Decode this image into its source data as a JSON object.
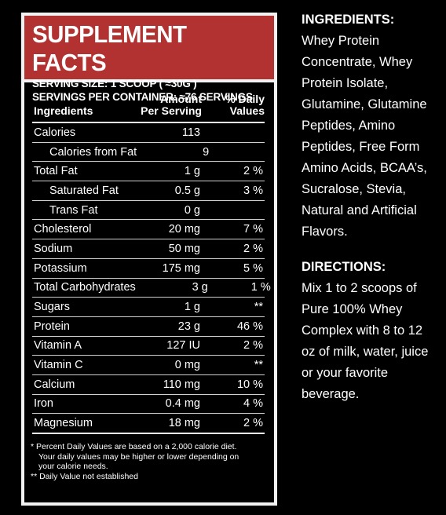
{
  "panel": {
    "title": "SUPPLEMENT FACTS",
    "serving_size": "SERVING SIZE: 1 SCOOP ( ≈30G )",
    "servings_per_container": "SERVINGS PER CONTAINER: ≈76 SERVINGS",
    "columns": {
      "ingredients": "Ingredients",
      "amount_line1": "Amount",
      "amount_line2": "Per Serving",
      "daily_line1": "% Daily",
      "daily_line2": "Values"
    },
    "rows": [
      {
        "name": "Calories",
        "amount": "113",
        "dv": ""
      },
      {
        "name": "Calories from Fat",
        "amount": "9",
        "dv": ""
      },
      {
        "name": "Total Fat",
        "amount": "1 g",
        "dv": "2 %"
      },
      {
        "name": "Saturated Fat",
        "amount": "0.5 g",
        "dv": "3 %"
      },
      {
        "name": "Trans Fat",
        "amount": "0 g",
        "dv": ""
      },
      {
        "name": "Cholesterol",
        "amount": "20 mg",
        "dv": "7 %"
      },
      {
        "name": "Sodium",
        "amount": "50 mg",
        "dv": "2 %"
      },
      {
        "name": "Potassium",
        "amount": "175 mg",
        "dv": "5 %"
      },
      {
        "name": "Total Carbohydrates",
        "amount": "3 g",
        "dv": "1 %"
      },
      {
        "name": "Sugars",
        "amount": "1 g",
        "dv": "**"
      },
      {
        "name": "Protein",
        "amount": "23 g",
        "dv": "46 %"
      },
      {
        "name": "Vitamin A",
        "amount": "127 IU",
        "dv": "2 %"
      },
      {
        "name": "Vitamin C",
        "amount": "0 mg",
        "dv": "**"
      },
      {
        "name": "Calcium",
        "amount": "110 mg",
        "dv": "10 %"
      },
      {
        "name": "Iron",
        "amount": "0.4 mg",
        "dv": "4 %"
      },
      {
        "name": "Magnesium",
        "amount": "18 mg",
        "dv": "2 %"
      }
    ],
    "footnote_line1": "* Percent Daily Values are based on a 2,000 calorie diet.",
    "footnote_line2": "Your daily values may be higher or lower depending on",
    "footnote_line3": "your calorie needs.",
    "footnote_line4": "** Daily Value not established",
    "header_color": "#b23232"
  },
  "ingredients": {
    "heading": "INGREDIENTS:",
    "lines": [
      "Whey Protein",
      "Concentrate, Whey",
      "Protein Isolate,",
      "Glutamine, Glutamine",
      "Peptides, Amino",
      "Peptides, Free Form",
      "Amino Acids, BCAA’s,",
      "Sucralose, Stevia,",
      "Natural and Artificial",
      "Flavors."
    ]
  },
  "directions": {
    "heading": "DIRECTIONS:",
    "lines": [
      "Mix 1 to 2 scoops of",
      "Pure 100% Whey",
      "Complex with 8 to 12",
      "oz of milk, water, juice",
      "or your favorite",
      "beverage."
    ]
  }
}
